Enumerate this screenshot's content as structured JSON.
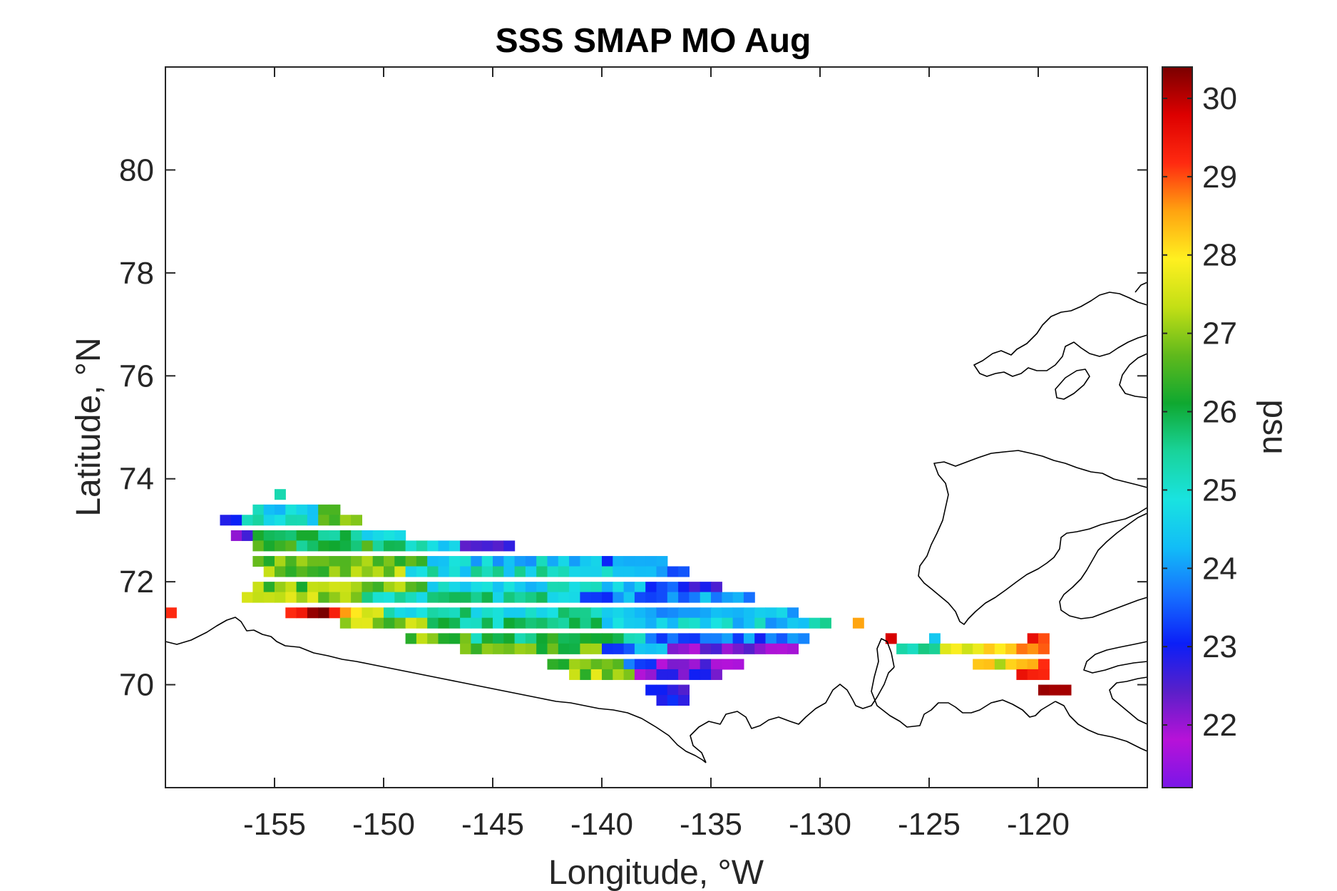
{
  "chart_data": {
    "type": "heatmap",
    "title": "SSS SMAP MO Aug",
    "xlabel": "Longitude, °W",
    "ylabel": "Latitude, °N",
    "xlim": [
      -160,
      -115
    ],
    "ylim": [
      68,
      82
    ],
    "x_ticks": [
      -155,
      -150,
      -145,
      -140,
      -135,
      -130,
      -125,
      -120
    ],
    "x_tick_labels": [
      "-155",
      "-150",
      "-145",
      "-140",
      "-135",
      "-130",
      "-125",
      "-120"
    ],
    "y_ticks": [
      70,
      72,
      74,
      76,
      78,
      80
    ],
    "y_tick_labels": [
      "70",
      "72",
      "74",
      "76",
      "78",
      "80"
    ],
    "colorbar": {
      "label": "psu",
      "range": [
        21.2,
        30.4
      ],
      "ticks": [
        22,
        23,
        24,
        25,
        26,
        27,
        28,
        29,
        30
      ],
      "tick_labels": [
        "22",
        "23",
        "24",
        "25",
        "26",
        "27",
        "28",
        "29",
        "30"
      ],
      "colormap": [
        "#7a16e8",
        "#b712d8",
        "#5a1fc9",
        "#0b1ff7",
        "#1670ff",
        "#12bdf7",
        "#19e3e0",
        "#19d39a",
        "#0fa830",
        "#60b91c",
        "#c3df15",
        "#fff020",
        "#ffa310",
        "#ff2a10",
        "#dd0000",
        "#7a0000"
      ]
    },
    "cell_size_deg": {
      "lon": 0.5,
      "lat": 0.2
    },
    "rows": [
      {
        "lat": 73.7,
        "segments": [
          {
            "lon_start": -155.0,
            "lon_end": -154.5,
            "value": 26.0
          }
        ]
      },
      {
        "lat": 73.4,
        "segments": [
          {
            "lon_start": -156.0,
            "lon_end": -153.0,
            "value": 24.6
          },
          {
            "lon_start": -153.0,
            "lon_end": -152.0,
            "value": 26.2
          }
        ]
      },
      {
        "lat": 73.2,
        "segments": [
          {
            "lon_start": -157.5,
            "lon_end": -156.5,
            "value": 22.8
          },
          {
            "lon_start": -156.5,
            "lon_end": -153.0,
            "value": 25.0
          },
          {
            "lon_start": -153.0,
            "lon_end": -151.0,
            "value": 26.5
          }
        ]
      },
      {
        "lat": 72.9,
        "segments": [
          {
            "lon_start": -157.0,
            "lon_end": -156.0,
            "value": 22.6
          },
          {
            "lon_start": -156.0,
            "lon_end": -151.0,
            "value": 25.6
          },
          {
            "lon_start": -151.0,
            "lon_end": -149.0,
            "value": 25.0
          }
        ]
      },
      {
        "lat": 72.7,
        "segments": [
          {
            "lon_start": -156.0,
            "lon_end": -149.0,
            "value": 26.1
          },
          {
            "lon_start": -149.0,
            "lon_end": -146.5,
            "value": 24.8
          },
          {
            "lon_start": -146.5,
            "lon_end": -144.0,
            "value": 22.7
          }
        ]
      },
      {
        "lat": 72.4,
        "segments": [
          {
            "lon_start": -156.0,
            "lon_end": -148.0,
            "value": 26.6
          },
          {
            "lon_start": -148.0,
            "lon_end": -140.0,
            "value": 24.5
          },
          {
            "lon_start": -140.0,
            "lon_end": -137.0,
            "value": 23.6
          }
        ]
      },
      {
        "lat": 72.2,
        "segments": [
          {
            "lon_start": -155.5,
            "lon_end": -149.0,
            "value": 27.0
          },
          {
            "lon_start": -149.0,
            "lon_end": -139.0,
            "value": 25.0
          },
          {
            "lon_start": -139.0,
            "lon_end": -136.0,
            "value": 24.0
          }
        ]
      },
      {
        "lat": 71.9,
        "segments": [
          {
            "lon_start": -156.0,
            "lon_end": -148.0,
            "value": 26.8
          },
          {
            "lon_start": -148.0,
            "lon_end": -138.0,
            "value": 24.6
          },
          {
            "lon_start": -138.0,
            "lon_end": -134.5,
            "value": 23.0
          }
        ]
      },
      {
        "lat": 71.7,
        "segments": [
          {
            "lon_start": -156.5,
            "lon_end": -151.0,
            "value": 27.3
          },
          {
            "lon_start": -151.0,
            "lon_end": -141.0,
            "value": 25.3
          },
          {
            "lon_start": -141.0,
            "lon_end": -133.0,
            "value": 23.8
          }
        ]
      },
      {
        "lat": 71.4,
        "segments": [
          {
            "lon_start": -160.0,
            "lon_end": -159.5,
            "value": 29.3
          },
          {
            "lon_start": -154.5,
            "lon_end": -152.0,
            "value": 29.8
          },
          {
            "lon_start": -152.0,
            "lon_end": -150.0,
            "value": 28.0
          },
          {
            "lon_start": -150.0,
            "lon_end": -140.0,
            "value": 25.2
          },
          {
            "lon_start": -140.0,
            "lon_end": -131.0,
            "value": 24.0
          }
        ]
      },
      {
        "lat": 71.2,
        "segments": [
          {
            "lon_start": -152.0,
            "lon_end": -148.0,
            "value": 27.0
          },
          {
            "lon_start": -148.0,
            "lon_end": -140.0,
            "value": 25.5
          },
          {
            "lon_start": -140.0,
            "lon_end": -131.0,
            "value": 24.6
          },
          {
            "lon_start": -131.0,
            "lon_end": -129.5,
            "value": 25.0
          },
          {
            "lon_start": -128.5,
            "lon_end": -128.0,
            "value": 29.0
          }
        ]
      },
      {
        "lat": 70.9,
        "segments": [
          {
            "lon_start": -149.0,
            "lon_end": -146.0,
            "value": 26.7
          },
          {
            "lon_start": -146.0,
            "lon_end": -138.0,
            "value": 25.8
          },
          {
            "lon_start": -138.0,
            "lon_end": -130.5,
            "value": 23.6
          },
          {
            "lon_start": -127.0,
            "lon_end": -126.5,
            "value": 29.4
          },
          {
            "lon_start": -125.0,
            "lon_end": -124.5,
            "value": 25.0
          },
          {
            "lon_start": -120.5,
            "lon_end": -119.5,
            "value": 29.0
          }
        ]
      },
      {
        "lat": 70.7,
        "segments": [
          {
            "lon_start": -146.5,
            "lon_end": -140.0,
            "value": 26.5
          },
          {
            "lon_start": -140.0,
            "lon_end": -137.0,
            "value": 23.8
          },
          {
            "lon_start": -137.0,
            "lon_end": -131.0,
            "value": 22.5
          },
          {
            "lon_start": -126.5,
            "lon_end": -124.5,
            "value": 25.2
          },
          {
            "lon_start": -124.5,
            "lon_end": -121.0,
            "value": 27.6
          },
          {
            "lon_start": -121.0,
            "lon_end": -119.5,
            "value": 28.5
          }
        ]
      },
      {
        "lat": 70.4,
        "segments": [
          {
            "lon_start": -142.5,
            "lon_end": -139.0,
            "value": 26.8
          },
          {
            "lon_start": -139.0,
            "lon_end": -137.5,
            "value": 23.8
          },
          {
            "lon_start": -137.5,
            "lon_end": -133.5,
            "value": 22.4
          },
          {
            "lon_start": -123.0,
            "lon_end": -121.0,
            "value": 27.8
          },
          {
            "lon_start": -121.0,
            "lon_end": -119.5,
            "value": 28.6
          }
        ]
      },
      {
        "lat": 70.2,
        "segments": [
          {
            "lon_start": -141.5,
            "lon_end": -138.5,
            "value": 27.0
          },
          {
            "lon_start": -138.5,
            "lon_end": -134.5,
            "value": 22.5
          },
          {
            "lon_start": -121.0,
            "lon_end": -119.5,
            "value": 29.6
          }
        ]
      },
      {
        "lat": 69.9,
        "segments": [
          {
            "lon_start": -138.0,
            "lon_end": -136.0,
            "value": 22.5
          },
          {
            "lon_start": -120.0,
            "lon_end": -118.5,
            "value": 29.7
          }
        ]
      },
      {
        "lat": 69.7,
        "segments": [
          {
            "lon_start": -137.5,
            "lon_end": -136.0,
            "value": 22.5
          }
        ]
      }
    ]
  }
}
